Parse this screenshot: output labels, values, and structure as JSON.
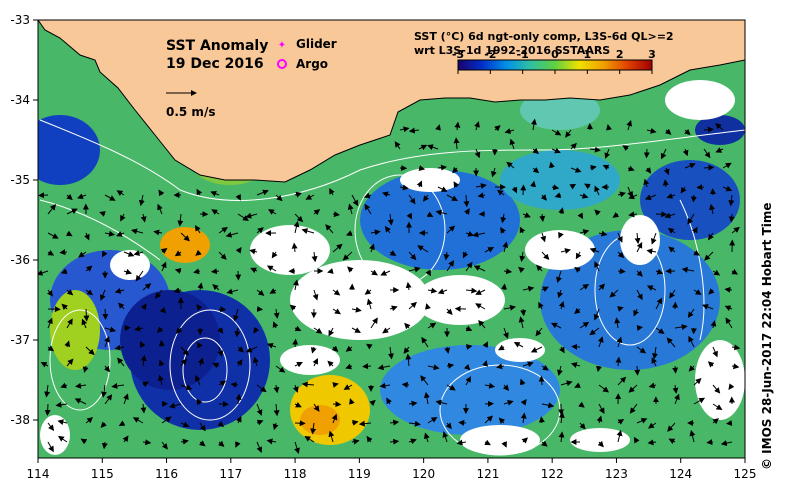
{
  "map": {
    "title": "SST Anomaly",
    "date": "19 Dec 2016",
    "vector_scale_label": "0.5 m/s",
    "legend": {
      "glider_label": "Glider",
      "argo_label": "Argo",
      "glider_color": "#ff00ff",
      "argo_color": "#ff00ff"
    },
    "product_line1": "SST (°C) 6d ngt-only comp, L3S-6d QL>=2",
    "product_line2": "wrt L3S-1d 1992-2016 SSTAARS",
    "colorbar": {
      "ticks": [
        "-3",
        "-2",
        "-1",
        "0",
        "1",
        "2",
        "3"
      ],
      "colors": [
        "#1a006e",
        "#0030c8",
        "#0090e8",
        "#30c0a0",
        "#60d040",
        "#f0e000",
        "#f0a000",
        "#e04000",
        "#a00000"
      ]
    },
    "credit": "© IMOS 28-Jun-2017 22:04 Hobart Time",
    "axes": {
      "lon_ticks": [
        "114",
        "115",
        "116",
        "117",
        "118",
        "119",
        "120",
        "121",
        "122",
        "123",
        "124",
        "125"
      ],
      "lat_ticks": [
        "-33",
        "-34",
        "-35",
        "-36",
        "-37",
        "-38"
      ]
    },
    "colors": {
      "land": "#f8c898",
      "coast": "#000000",
      "no_data": "#ffffff",
      "contour": "#ffffff"
    }
  }
}
